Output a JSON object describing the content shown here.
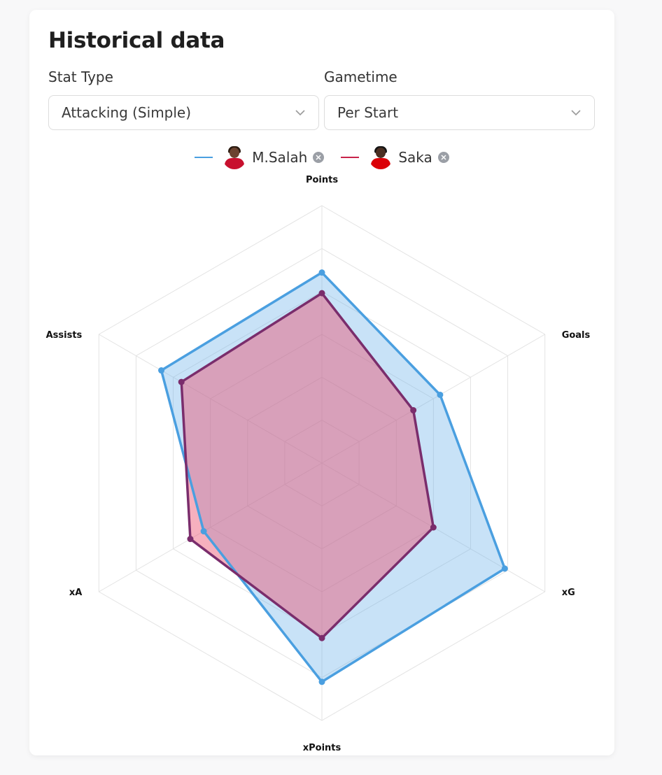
{
  "header": {
    "title": "Historical data"
  },
  "filters": {
    "stat_type": {
      "label": "Stat Type",
      "value": "Attacking (Simple)"
    },
    "gametime": {
      "label": "Gametime",
      "value": "Per Start"
    }
  },
  "legend": [
    {
      "name": "M.Salah",
      "color": "#4a9fe0",
      "kit_color": "#c8102e",
      "hair_color": "#2a1a10",
      "skin_color": "#6b4330",
      "avatar_icon": "player-photo-icon"
    },
    {
      "name": "Saka",
      "color": "#c8234a",
      "kit_color": "#db0007",
      "hair_color": "#141414",
      "skin_color": "#4b2f22",
      "avatar_icon": "player-photo-icon"
    }
  ],
  "chart_data": {
    "type": "radar",
    "axes": [
      "Points",
      "Goals",
      "xG",
      "xPoints",
      "xA",
      "Assists"
    ],
    "rlim": [
      0,
      1
    ],
    "gridlines": 6,
    "series": [
      {
        "name": "M.Salah",
        "color": "#4a9fe0",
        "fill": "rgba(110,180,235,0.38)",
        "values": [
          0.74,
          0.53,
          0.82,
          0.85,
          0.53,
          0.72
        ]
      },
      {
        "name": "Saka",
        "color": "#7a2d6c",
        "fill": "rgba(235,80,110,0.45)",
        "values": [
          0.66,
          0.41,
          0.5,
          0.68,
          0.59,
          0.63
        ]
      }
    ]
  }
}
